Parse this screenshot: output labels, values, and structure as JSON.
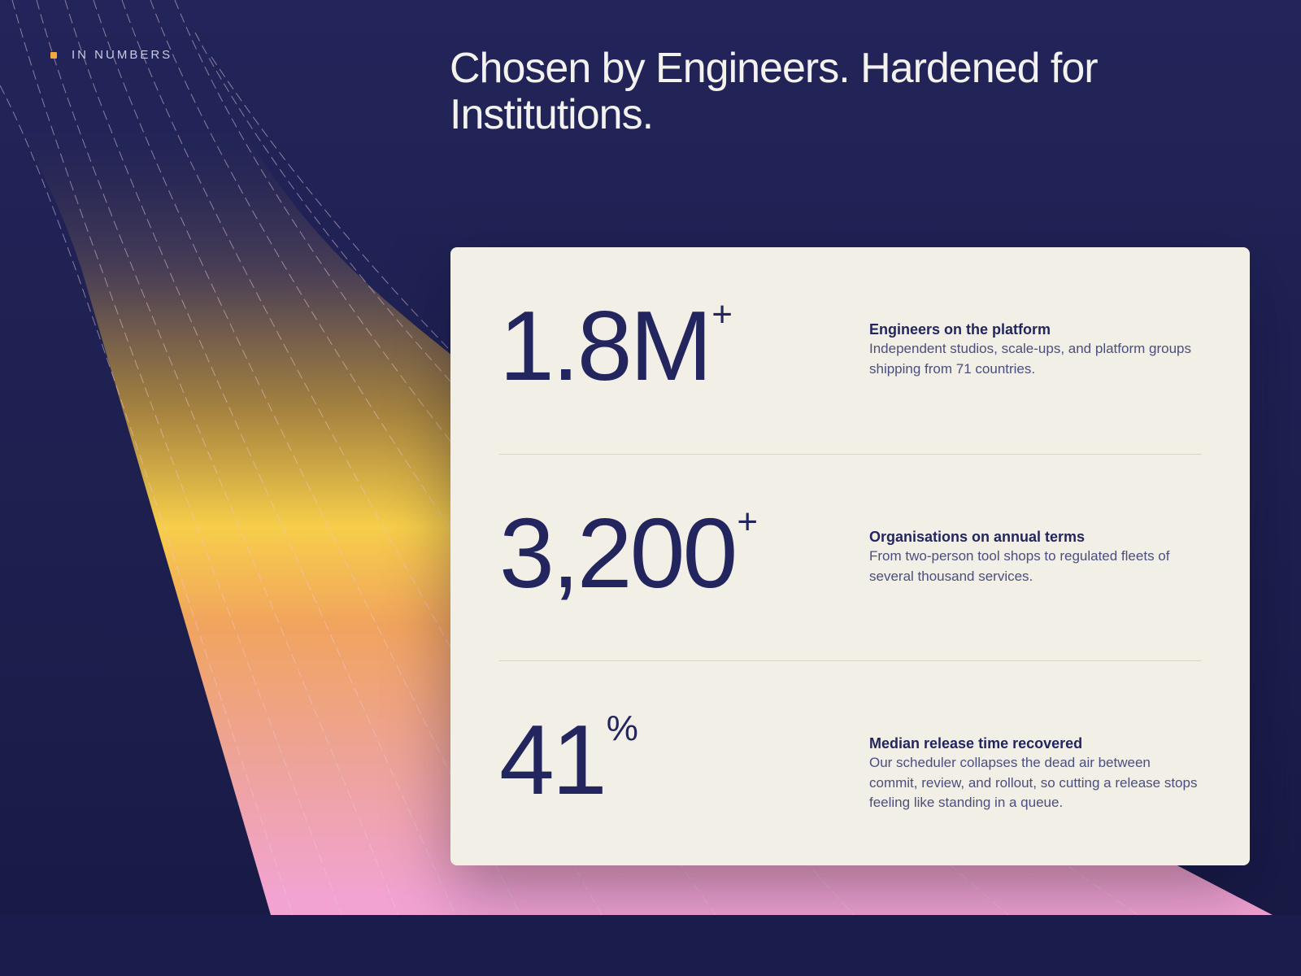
{
  "eyebrow": "IN NUMBERS",
  "title": "Chosen by Engineers. Hardened for Institutions.",
  "stats": [
    {
      "value": "1.8M",
      "suffix": "+",
      "label": "Engineers on the platform",
      "description": "Independent studios, scale-ups, and platform groups shipping from 71 countries."
    },
    {
      "value": "3,200",
      "suffix": "+",
      "label": "Organisations on annual terms",
      "description": "From two-person tool shops to regulated fleets of several thousand services."
    },
    {
      "value": "41",
      "suffix": "%",
      "label": "Median release time recovered",
      "description": "Our scheduler collapses the dead air between commit, review, and rollout, so cutting a release stops feeling like standing in a queue."
    }
  ]
}
